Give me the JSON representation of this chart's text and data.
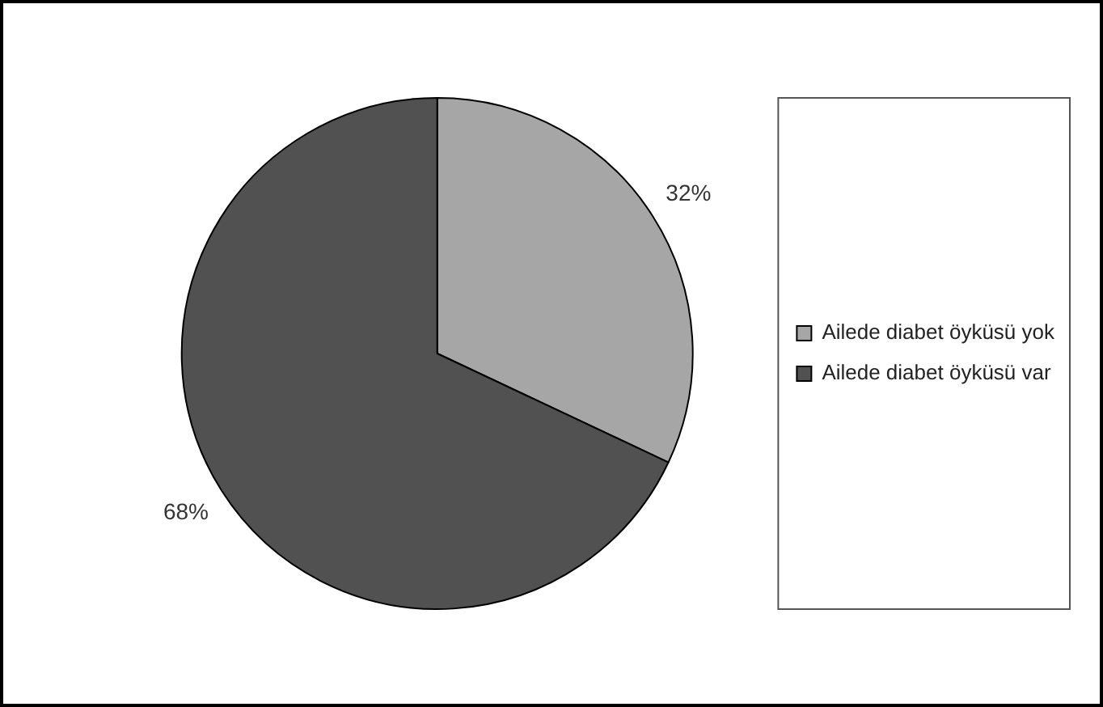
{
  "chart_data": {
    "type": "pie",
    "categories": [
      "Ailede diabet öyküsü yok",
      "Ailede diabet öyküsü var"
    ],
    "values": [
      32,
      68
    ],
    "colors": [
      "#a6a6a6",
      "#515151"
    ],
    "value_labels": [
      "32%",
      "68%"
    ],
    "legend": "right"
  }
}
